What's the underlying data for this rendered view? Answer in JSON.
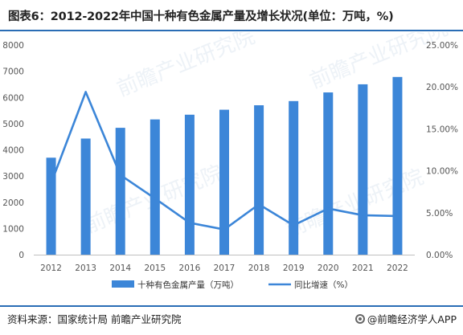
{
  "title": "图表6：2012-2022年中国十种有色金属产量及增长状况(单位：万吨，%)",
  "source": "资料来源：国家统计局 前瞻产业研究院",
  "brand": "@前瞻经济学人APP",
  "watermark": "前瞻产业研究院",
  "colors": {
    "bar": "#3c86d8",
    "line": "#3c86d8",
    "axis_text": "#555555",
    "rule": "#2a6db5"
  },
  "chart_data": {
    "type": "bar",
    "categories": [
      "2012",
      "2013",
      "2014",
      "2015",
      "2016",
      "2017",
      "2018",
      "2019",
      "2020",
      "2021",
      "2022"
    ],
    "series": [
      {
        "name": "十种有色金属产量（万吨）",
        "type": "bar",
        "axis": "left",
        "values": [
          3700,
          4430,
          4840,
          5160,
          5340,
          5530,
          5700,
          5860,
          6190,
          6500,
          6780
        ]
      },
      {
        "name": "同比增速（%）",
        "type": "line",
        "axis": "right",
        "values": [
          8.5,
          19.4,
          9.5,
          6.7,
          3.8,
          3.0,
          6.0,
          3.5,
          5.5,
          4.7,
          4.6
        ]
      }
    ],
    "y_left": {
      "min": 0,
      "max": 8000,
      "ticks": [
        "0",
        "1000",
        "2000",
        "3000",
        "4000",
        "5000",
        "6000",
        "7000",
        "8000"
      ]
    },
    "y_right": {
      "min": 0,
      "max": 25,
      "ticks": [
        "0.00%",
        "5.00%",
        "10.00%",
        "15.00%",
        "20.00%",
        "25.00%"
      ]
    },
    "legend_position": "bottom"
  }
}
